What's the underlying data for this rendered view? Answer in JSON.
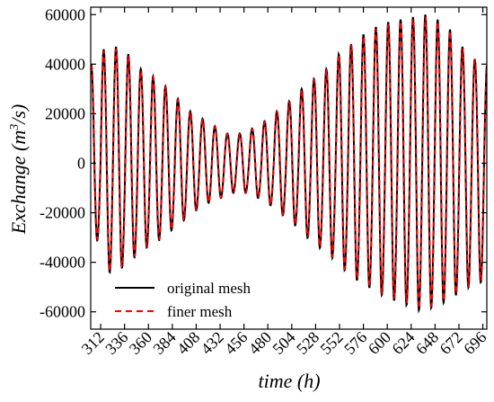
{
  "chart_data": {
    "type": "line",
    "xlabel": "time (h)",
    "ylabel_main": "Exchange (m",
    "ylabel_sup": "3",
    "ylabel_tail": "/s)",
    "xlim": [
      302,
      700
    ],
    "ylim": [
      -67000,
      63000
    ],
    "x_ticks": [
      312,
      336,
      360,
      384,
      408,
      432,
      456,
      480,
      504,
      528,
      552,
      576,
      600,
      624,
      648,
      672,
      696
    ],
    "y_ticks": [
      -60000,
      -40000,
      -20000,
      0,
      20000,
      40000,
      60000
    ],
    "y_tick_labels": [
      "-60000",
      "-40000",
      "-20000",
      "0",
      "20000",
      "40000",
      "60000"
    ],
    "grid": false,
    "legend_position": "bottom-left",
    "oscillation": {
      "period_h": 12.42,
      "start_h": 303,
      "end_h": 700,
      "crest_times_h": [
        302.5,
        315.0,
        327.4,
        339.8,
        352.3,
        364.7,
        377.1,
        389.6,
        402.0,
        414.4,
        426.8,
        439.3,
        451.7,
        464.1,
        476.6,
        489.0,
        501.4,
        513.9,
        526.3,
        538.7,
        551.2,
        563.6,
        576.0,
        588.5,
        600.9,
        613.3,
        625.8,
        638.2,
        650.6,
        663.0,
        675.5,
        687.9,
        700.3
      ],
      "crest_values": [
        40000,
        46000,
        47000,
        44000,
        38000,
        35000,
        31000,
        26000,
        21000,
        18000,
        15000,
        12000,
        12000,
        14000,
        17000,
        21000,
        25000,
        30000,
        34000,
        38000,
        44000,
        48000,
        52000,
        55000,
        57000,
        58000,
        59000,
        60000,
        58000,
        54000,
        47000,
        42000,
        40000
      ],
      "semi_crest_ratios": [
        0.55,
        0.4,
        0.62,
        0.45,
        0.6,
        0.5,
        0.66,
        0.72,
        0.55,
        0.48,
        0.6,
        0.52,
        0.64,
        0.58,
        0.55,
        0.6,
        0.62,
        0.7,
        0.78,
        0.82,
        0.7,
        0.85,
        0.8,
        0.72,
        0.9,
        0.78,
        0.84,
        0.82,
        0.78,
        0.9,
        0.86,
        0.8,
        0.85
      ],
      "trough_values": [
        -31000,
        -44000,
        -42000,
        -38000,
        -34000,
        -31000,
        -27000,
        -23000,
        -19000,
        -16000,
        -14000,
        -12000,
        -12000,
        -14000,
        -17000,
        -21000,
        -25000,
        -30000,
        -34000,
        -38000,
        -43000,
        -47000,
        -50000,
        -53000,
        -55000,
        -57000,
        -59000,
        -58000,
        -56000,
        -53000,
        -50000,
        -48000,
        -45000
      ]
    },
    "series": [
      {
        "name": "original mesh",
        "color": "#000000",
        "dash": "solid"
      },
      {
        "name": "finer mesh",
        "color": "#ff0000",
        "dash": "dashed"
      }
    ]
  }
}
